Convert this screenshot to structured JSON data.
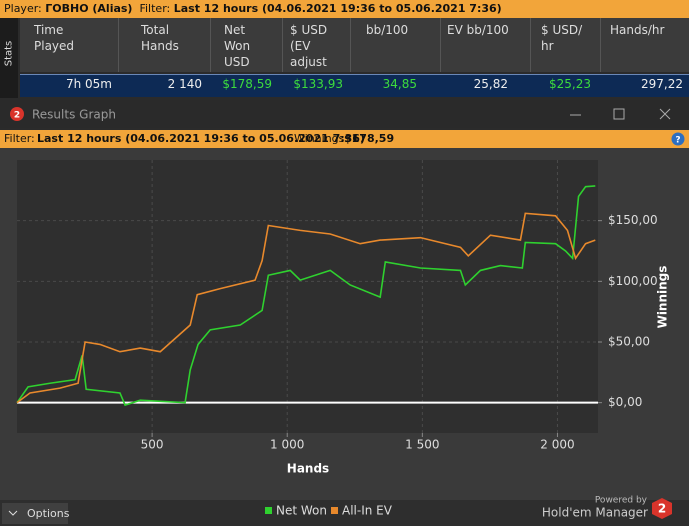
{
  "top_bar": {
    "player_label": "Player:",
    "player": "ГОВНО (Alias)",
    "filter_label": "Filter:",
    "filter": "Last 12 hours (04.06.2021 19:36 to 05.06.2021 7:36)"
  },
  "stats": {
    "tab": "Stats",
    "headers": [
      "Time Played",
      "Total Hands",
      "Net Won USD",
      "$ USD (EV adjust",
      "bb/100",
      "EV bb/100",
      "$ USD/ hr",
      "Hands/hr"
    ],
    "row": [
      "7h 05m",
      "2 140",
      "$178,59",
      "$133,93",
      "34,85",
      "25,82",
      "$25,23",
      "297,22"
    ]
  },
  "window": {
    "title": "Results Graph",
    "icon_label": "2"
  },
  "filter_bar": {
    "filter_label": "Filter:",
    "filter": "Last 12 hours (04.06.2021 19:36 to 05.06.2021 7:36)",
    "winnings_label": "Winnings:",
    "winnings": "$178,59",
    "help": "?"
  },
  "chart_data": {
    "type": "line",
    "x_label": "Hands",
    "y_label": "Winnings",
    "xlim": [
      0,
      2150
    ],
    "ylim": [
      -25,
      200
    ],
    "xticks": [
      500,
      {
        "value": 1000,
        "label": "1 000"
      },
      {
        "value": 1500,
        "label": "1 500"
      },
      {
        "value": 2000,
        "label": "2 000"
      }
    ],
    "yticks": [
      {
        "value": 0,
        "label": "$0,00"
      },
      {
        "value": 50,
        "label": "$50,00"
      },
      {
        "value": 100,
        "label": "$100,00"
      },
      {
        "value": 150,
        "label": "$150,00"
      }
    ],
    "grid": true,
    "legend": "bottom",
    "series": [
      {
        "name": "Net Won",
        "color": "#2fd12f",
        "x": [
          0,
          41,
          122,
          215,
          241,
          256,
          381,
          400,
          456,
          622,
          641,
          670,
          715,
          826,
          907,
          930,
          1011,
          1048,
          1159,
          1233,
          1344,
          1363,
          1493,
          1641,
          1659,
          1715,
          1789,
          1870,
          1881,
          1993,
          2030,
          2056,
          2078,
          2104,
          2140
        ],
        "values": [
          0,
          13,
          16,
          19,
          39,
          11,
          8,
          -2,
          2,
          0,
          27,
          48,
          60,
          64,
          76,
          105,
          109,
          101,
          109,
          97,
          87,
          116,
          111,
          109,
          97,
          109,
          113,
          111,
          132,
          131,
          125,
          119,
          170,
          178,
          178.59
        ]
      },
      {
        "name": "All-In EV",
        "color": "#e8892c",
        "x": [
          0,
          48,
          159,
          226,
          252,
          307,
          381,
          456,
          530,
          641,
          667,
          752,
          881,
          907,
          930,
          1048,
          1159,
          1270,
          1344,
          1493,
          1641,
          1670,
          1752,
          1863,
          1881,
          1993,
          2037,
          2067,
          2104,
          2140
        ],
        "values": [
          0,
          8,
          12,
          16,
          50,
          48,
          42,
          45,
          42,
          64,
          89,
          94,
          101,
          117,
          146,
          142,
          139,
          131,
          134,
          136,
          128,
          121,
          138,
          134,
          156,
          154,
          142,
          119,
          131,
          133.93
        ]
      }
    ]
  },
  "footer": {
    "options": "Options",
    "powered_by": "Powered by",
    "brand": "Hold'em Manager",
    "brand_mark": "2"
  }
}
